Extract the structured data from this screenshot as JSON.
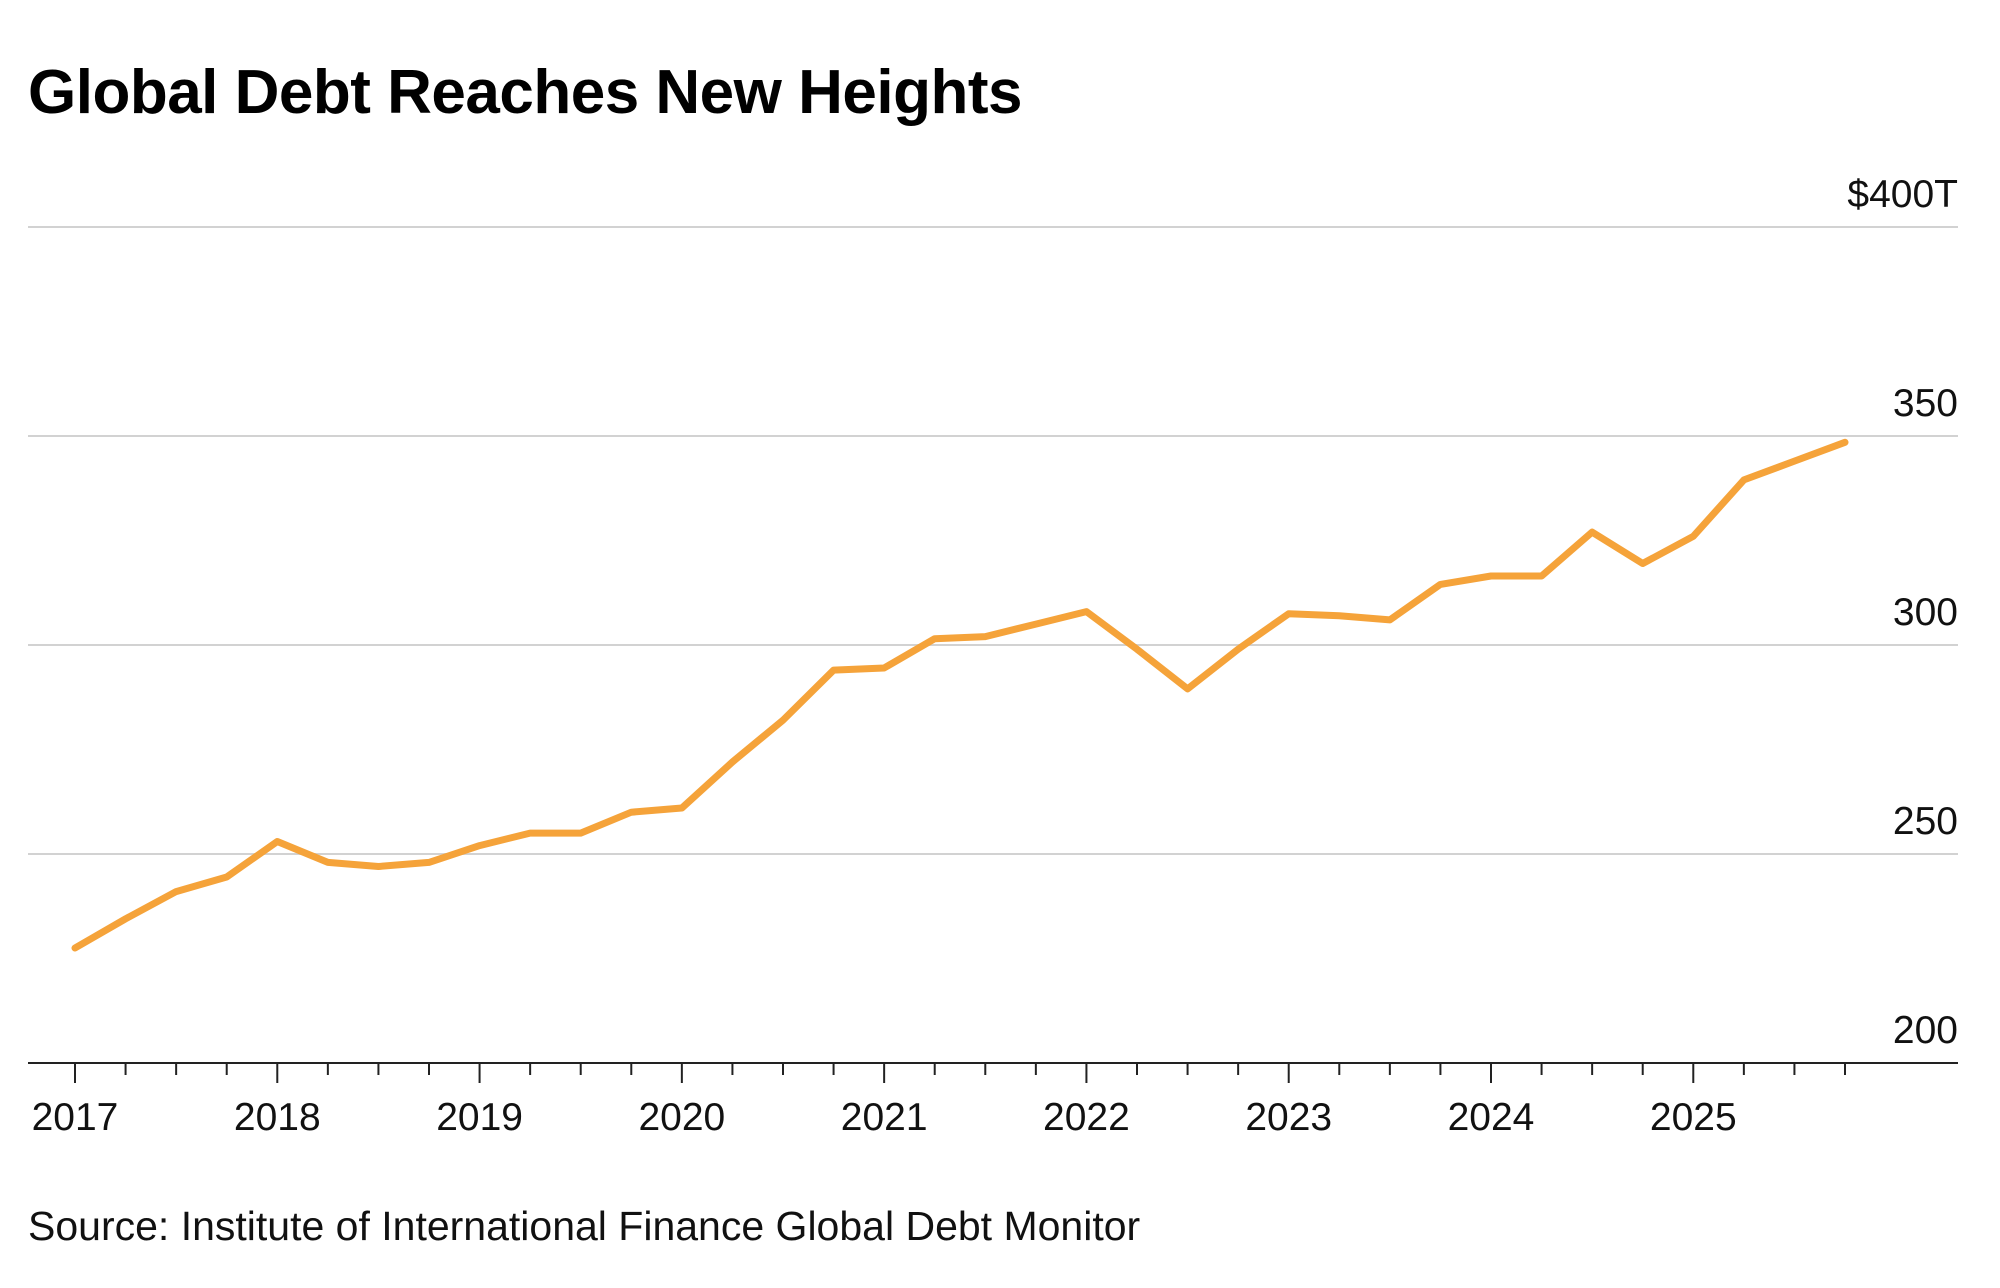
{
  "chart_data": {
    "type": "line",
    "title": "Global Debt Reaches New Heights",
    "source": "Source: Institute of International Finance Global Debt Monitor",
    "xlabel": "",
    "ylabel": "",
    "x_range": [
      2017,
      2025.75
    ],
    "ylim": [
      200,
      400
    ],
    "y_ticks": [
      {
        "value": 400,
        "label": "$400T"
      },
      {
        "value": 350,
        "label": "350"
      },
      {
        "value": 300,
        "label": "300"
      },
      {
        "value": 250,
        "label": "250"
      },
      {
        "value": 200,
        "label": "200"
      }
    ],
    "x_ticks": [
      {
        "value": 2017,
        "label": "2017"
      },
      {
        "value": 2018,
        "label": "2018"
      },
      {
        "value": 2019,
        "label": "2019"
      },
      {
        "value": 2020,
        "label": "2020"
      },
      {
        "value": 2021,
        "label": "2021"
      },
      {
        "value": 2022,
        "label": "2022"
      },
      {
        "value": 2023,
        "label": "2023"
      },
      {
        "value": 2024,
        "label": "2024"
      },
      {
        "value": 2025,
        "label": "2025"
      }
    ],
    "grid": true,
    "series": [
      {
        "name": "Global debt",
        "color": "#f5a33a",
        "points": [
          [
            2017.0,
            227.5
          ],
          [
            2017.25,
            234.5
          ],
          [
            2017.5,
            241.0
          ],
          [
            2017.75,
            244.5
          ],
          [
            2018.0,
            253.0
          ],
          [
            2018.25,
            248.0
          ],
          [
            2018.5,
            247.0
          ],
          [
            2018.75,
            248.0
          ],
          [
            2019.0,
            252.0
          ],
          [
            2019.25,
            255.0
          ],
          [
            2019.5,
            255.0
          ],
          [
            2019.75,
            260.0
          ],
          [
            2020.0,
            261.0
          ],
          [
            2020.25,
            272.0
          ],
          [
            2020.5,
            282.0
          ],
          [
            2020.75,
            294.0
          ],
          [
            2021.0,
            294.5
          ],
          [
            2021.25,
            301.5
          ],
          [
            2021.5,
            302.0
          ],
          [
            2021.75,
            305.0
          ],
          [
            2022.0,
            308.0
          ],
          [
            2022.25,
            299.0
          ],
          [
            2022.5,
            289.5
          ],
          [
            2022.75,
            299.0
          ],
          [
            2023.0,
            307.5
          ],
          [
            2023.25,
            307.0
          ],
          [
            2023.5,
            306.0
          ],
          [
            2023.75,
            314.5
          ],
          [
            2024.0,
            316.5
          ],
          [
            2024.25,
            316.5
          ],
          [
            2024.5,
            327.0
          ],
          [
            2024.75,
            319.5
          ],
          [
            2025.0,
            326.0
          ],
          [
            2025.25,
            339.5
          ],
          [
            2025.5,
            344.0
          ],
          [
            2025.75,
            348.5
          ]
        ]
      }
    ]
  }
}
